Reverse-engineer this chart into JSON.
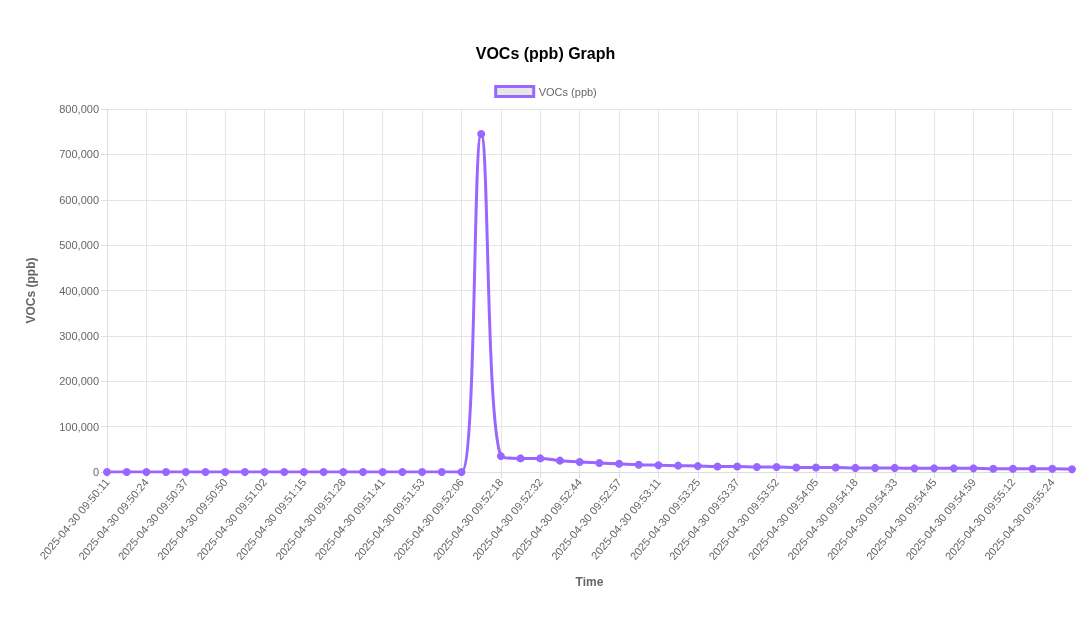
{
  "chart_data": {
    "type": "line",
    "title": "VOCs (ppb) Graph",
    "xlabel": "Time",
    "ylabel": "VOCs (ppb)",
    "categories": [
      "2025-04-30 09:50:11",
      null,
      "2025-04-30 09:50:24",
      null,
      "2025-04-30 09:50:37",
      null,
      "2025-04-30 09:50:50",
      null,
      "2025-04-30 09:51:02",
      null,
      "2025-04-30 09:51:15",
      null,
      "2025-04-30 09:51:28",
      null,
      "2025-04-30 09:51:41",
      null,
      "2025-04-30 09:51:53",
      null,
      "2025-04-30 09:52:06",
      null,
      "2025-04-30 09:52:18",
      null,
      "2025-04-30 09:52:32",
      null,
      "2025-04-30 09:52:44",
      null,
      "2025-04-30 09:52:57",
      null,
      "2025-04-30 09:53:11",
      null,
      "2025-04-30 09:53:25",
      null,
      "2025-04-30 09:53:37",
      null,
      "2025-04-30 09:53:52",
      null,
      "2025-04-30 09:54:05",
      null,
      "2025-04-30 09:54:18",
      null,
      "2025-04-30 09:54:33",
      null,
      "2025-04-30 09:54:45",
      null,
      "2025-04-30 09:54:59",
      null,
      "2025-04-30 09:55:12",
      null,
      "2025-04-30 09:55:24",
      null
    ],
    "series": [
      {
        "name": "VOCs (ppb)",
        "color": "#9966ff",
        "values": [
          0,
          0,
          0,
          0,
          0,
          0,
          0,
          0,
          0,
          0,
          0,
          0,
          0,
          0,
          0,
          0,
          0,
          0,
          0,
          745000,
          35000,
          30000,
          30000,
          25000,
          22000,
          20000,
          18000,
          16000,
          15000,
          14000,
          13000,
          12000,
          12000,
          11000,
          11000,
          10000,
          10000,
          10000,
          9000,
          9000,
          9000,
          8000,
          8000,
          8000,
          8000,
          7000,
          7000,
          7000,
          7000,
          6000
        ]
      }
    ],
    "ylim": [
      0,
      800000
    ],
    "yticks": [
      0,
      {
        "value": 100000,
        "label": "100,000"
      },
      {
        "value": 200000,
        "label": "200,000"
      },
      {
        "value": 300000,
        "label": "300,000"
      },
      {
        "value": 400000,
        "label": "400,000"
      },
      {
        "value": 500000,
        "label": "500,000"
      },
      {
        "value": 600000,
        "label": "600,000"
      },
      {
        "value": 700000,
        "label": "700,000"
      },
      {
        "value": 800000,
        "label": "800,000"
      }
    ],
    "grid": true,
    "legend": "top",
    "marker": "circle",
    "line_style": "solid"
  }
}
